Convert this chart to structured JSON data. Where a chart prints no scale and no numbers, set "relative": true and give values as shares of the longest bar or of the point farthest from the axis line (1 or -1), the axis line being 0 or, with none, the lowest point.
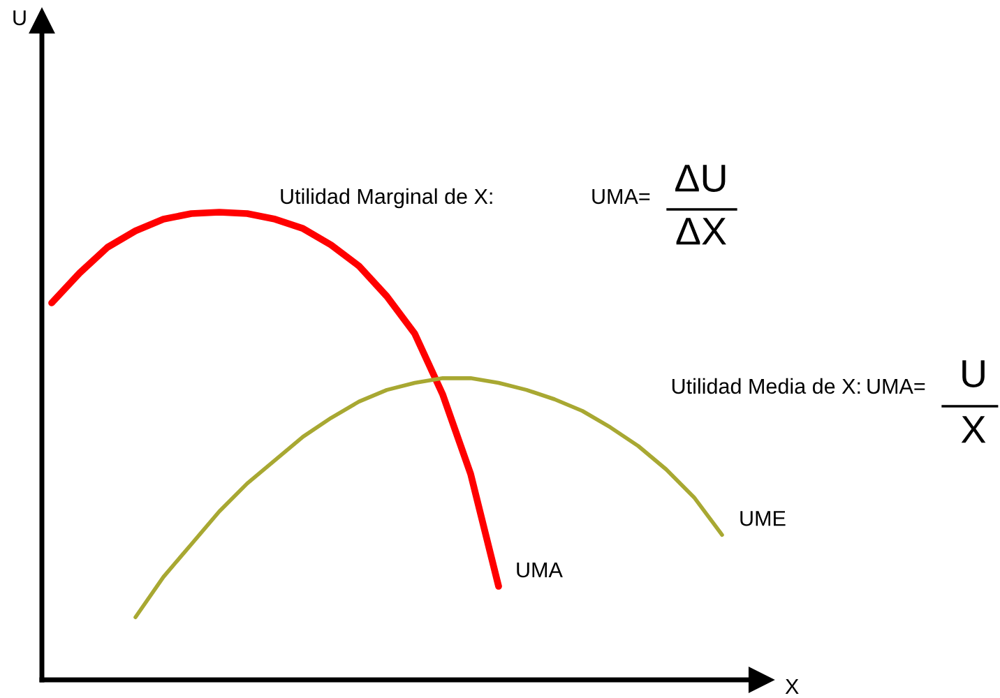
{
  "chart_data": {
    "type": "line",
    "relative": true,
    "xlabel": "X",
    "categories": [
      null,
      null,
      null,
      null,
      null,
      null,
      null,
      null,
      null,
      null,
      null,
      null,
      null,
      null,
      null,
      null,
      null,
      null,
      null,
      null,
      null,
      null,
      null,
      null,
      null
    ],
    "series": [
      {
        "name": "UMA",
        "color": "#ff0000",
        "values": [
          0.806,
          0.87,
          0.925,
          0.96,
          0.985,
          0.997,
          1,
          0.997,
          0.985,
          0.965,
          0.93,
          0.885,
          0.82,
          0.74,
          0.61,
          0.44,
          0.2,
          null,
          null,
          null,
          null,
          null,
          null,
          null,
          null
        ]
      },
      {
        "name": "UME",
        "color": "#a8a832",
        "values": [
          null,
          null,
          null,
          0.134,
          0.22,
          0.29,
          0.36,
          0.42,
          0.47,
          0.52,
          0.56,
          0.595,
          0.62,
          0.635,
          0.645,
          0.645,
          0.635,
          0.62,
          0.6,
          0.575,
          0.54,
          0.5,
          0.45,
          0.39,
          0.31
        ]
      }
    ],
    "annotations": [
      "Utilidad Marginal de X:",
      "UMA=",
      "ΔU",
      "ΔX",
      "Utilidad Media de X:",
      "UMA=",
      "U",
      "X",
      "U"
    ]
  }
}
